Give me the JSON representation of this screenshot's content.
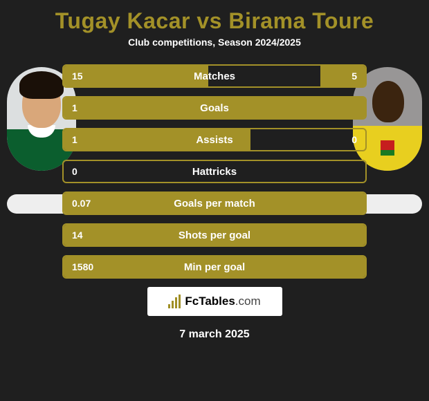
{
  "title": "Tugay Kacar vs Birama Toure",
  "subtitle": "Club competitions, Season 2024/2025",
  "colors": {
    "accent": "#a39128",
    "background": "#1f1f1f",
    "text": "#ffffff"
  },
  "player_left": {
    "name": "Tugay Kacar"
  },
  "player_right": {
    "name": "Birama Toure"
  },
  "stats": [
    {
      "label": "Matches",
      "left_val": "15",
      "right_val": "5",
      "left_pct": 48,
      "right_pct": 15
    },
    {
      "label": "Goals",
      "left_val": "1",
      "right_val": "",
      "left_pct": 100,
      "right_pct": 0
    },
    {
      "label": "Assists",
      "left_val": "1",
      "right_val": "0",
      "left_pct": 62,
      "right_pct": 0
    },
    {
      "label": "Hattricks",
      "left_val": "0",
      "right_val": "",
      "left_pct": 0,
      "right_pct": 0
    },
    {
      "label": "Goals per match",
      "left_val": "0.07",
      "right_val": "",
      "left_pct": 100,
      "right_pct": 0
    },
    {
      "label": "Shots per goal",
      "left_val": "14",
      "right_val": "",
      "left_pct": 100,
      "right_pct": 0
    },
    {
      "label": "Min per goal",
      "left_val": "1580",
      "right_val": "",
      "left_pct": 100,
      "right_pct": 0
    }
  ],
  "logo_text_main": "FcTables",
  "logo_text_ext": ".com",
  "date": "7 march 2025"
}
